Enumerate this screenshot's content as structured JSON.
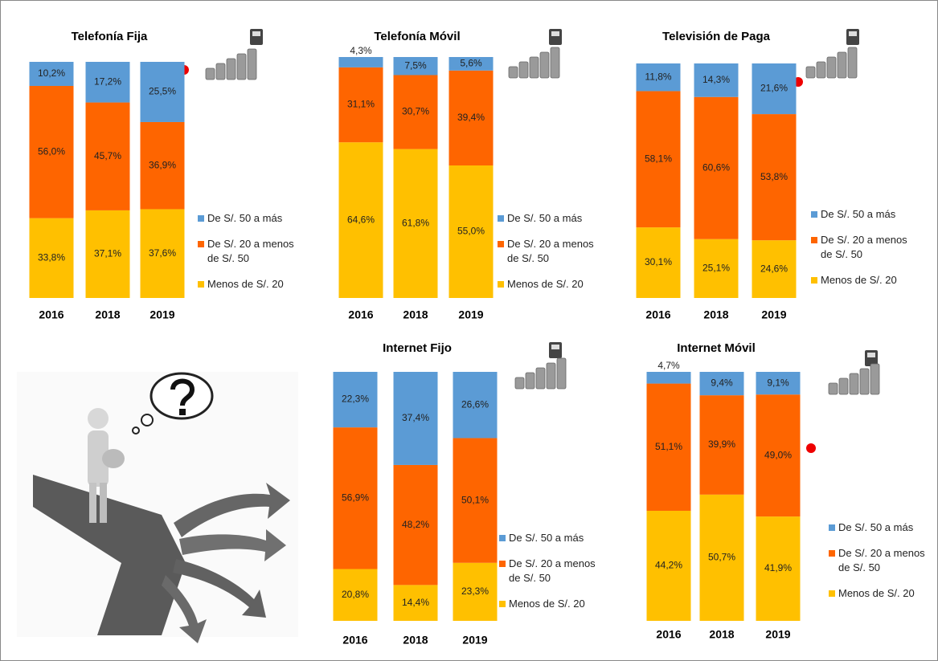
{
  "chart_data": [
    {
      "type": "bar",
      "stacked": true,
      "title": "Telefonía Fija",
      "categories": [
        "2016",
        "2018",
        "2019"
      ],
      "series": [
        {
          "name": "Menos de S/. 20",
          "color": "#ffc000",
          "values": [
            33.8,
            37.1,
            37.6
          ],
          "value_labels": [
            "33,8%",
            "37,1%",
            "37,6%"
          ]
        },
        {
          "name": "De S/. 20 a menos de S/. 50",
          "color": "#fe6500",
          "values": [
            56.0,
            45.7,
            36.9
          ],
          "value_labels": [
            "56,0%",
            "45,7%",
            "36,9%"
          ]
        },
        {
          "name": "De S/. 50 a más",
          "color": "#5b9bd5",
          "values": [
            10.2,
            17.2,
            25.5
          ],
          "value_labels": [
            "10,2%",
            "17,2%",
            "25,5%"
          ]
        }
      ]
    },
    {
      "type": "bar",
      "stacked": true,
      "title": "Telefonía Móvil",
      "categories": [
        "2016",
        "2018",
        "2019"
      ],
      "series": [
        {
          "name": "Menos de S/. 20",
          "color": "#ffc000",
          "values": [
            64.6,
            61.8,
            55.0
          ],
          "value_labels": [
            "64,6%",
            "61,8%",
            "55,0%"
          ]
        },
        {
          "name": "De S/. 20 a menos de S/. 50",
          "color": "#fe6500",
          "values": [
            31.1,
            30.7,
            39.4
          ],
          "value_labels": [
            "31,1%",
            "30,7%",
            "39,4%"
          ]
        },
        {
          "name": "De S/. 50 a más",
          "color": "#5b9bd5",
          "values": [
            4.3,
            7.5,
            5.6
          ],
          "value_labels": [
            "4,3%",
            "7,5%",
            "5,6%"
          ]
        }
      ]
    },
    {
      "type": "bar",
      "stacked": true,
      "title": "Televisión de Paga",
      "categories": [
        "2016",
        "2018",
        "2019"
      ],
      "series": [
        {
          "name": "Menos de S/. 20",
          "color": "#ffc000",
          "values": [
            30.1,
            25.1,
            24.6
          ],
          "value_labels": [
            "30,1%",
            "25,1%",
            "24,6%"
          ]
        },
        {
          "name": "De S/. 20 a menos de S/. 50",
          "color": "#fe6500",
          "values": [
            58.1,
            60.6,
            53.8
          ],
          "value_labels": [
            "58,1%",
            "60,6%",
            "53,8%"
          ]
        },
        {
          "name": "De S/. 50 a más",
          "color": "#5b9bd5",
          "values": [
            11.8,
            14.3,
            21.6
          ],
          "value_labels": [
            "11,8%",
            "14,3%",
            "21,6%"
          ]
        }
      ]
    },
    {
      "type": "bar",
      "stacked": true,
      "title": "Internet Fijo",
      "categories": [
        "2016",
        "2018",
        "2019"
      ],
      "series": [
        {
          "name": "Menos de S/. 20",
          "color": "#ffc000",
          "values": [
            20.8,
            14.4,
            23.3
          ],
          "value_labels": [
            "20,8%",
            "14,4%",
            "23,3%"
          ]
        },
        {
          "name": "De S/. 20 a menos de S/. 50",
          "color": "#fe6500",
          "values": [
            56.9,
            48.2,
            50.1
          ],
          "value_labels": [
            "56,9%",
            "48,2%",
            "50,1%"
          ]
        },
        {
          "name": "De S/. 50 a más",
          "color": "#5b9bd5",
          "values": [
            22.3,
            37.4,
            26.6
          ],
          "value_labels": [
            "22,3%",
            "37,4%",
            "26,6%"
          ]
        }
      ]
    },
    {
      "type": "bar",
      "stacked": true,
      "title": "Internet Móvil",
      "categories": [
        "2016",
        "2018",
        "2019"
      ],
      "series": [
        {
          "name": "Menos de S/. 20",
          "color": "#ffc000",
          "values": [
            44.2,
            50.7,
            41.9
          ],
          "value_labels": [
            "44,2%",
            "50,7%",
            "41,9%"
          ]
        },
        {
          "name": "De S/. 20 a menos de S/. 50",
          "color": "#fe6500",
          "values": [
            51.1,
            39.9,
            49.0
          ],
          "value_labels": [
            "51,1%",
            "39,9%",
            "49,0%"
          ]
        },
        {
          "name": "De S/. 50 a más",
          "color": "#5b9bd5",
          "values": [
            4.7,
            9.4,
            9.1
          ],
          "value_labels": [
            "4,7%",
            "9,4%",
            "9,1%"
          ]
        }
      ]
    }
  ]
}
